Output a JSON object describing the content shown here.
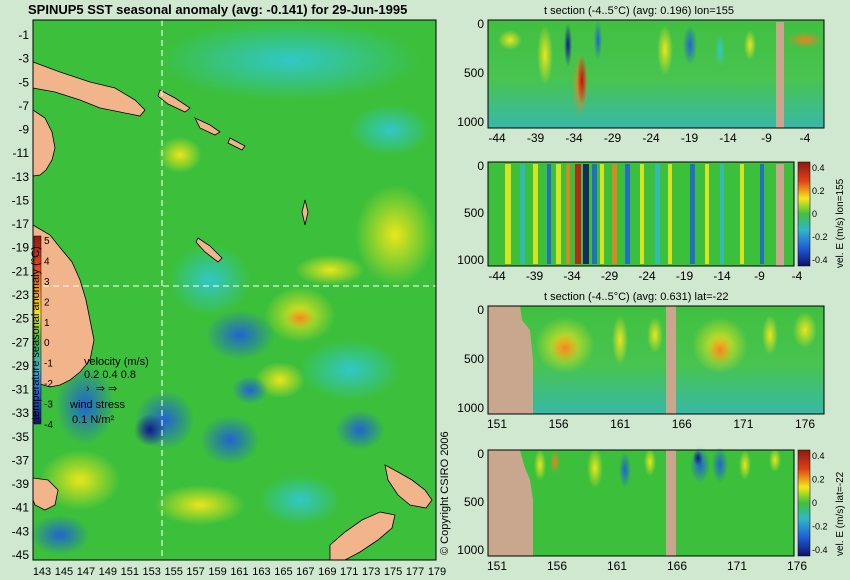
{
  "main_map": {
    "title": "SPINUP5 SST seasonal anomaly (avg: -0.141) for 29-Jun-1995",
    "lat_ticks": [
      "-1",
      "-3",
      "-5",
      "-7",
      "-9",
      "-11",
      "-13",
      "-15",
      "-17",
      "-19",
      "-21",
      "-23",
      "-25",
      "-27",
      "-29",
      "-31",
      "-33",
      "-35",
      "-37",
      "-39",
      "-41",
      "-43",
      "-45"
    ],
    "lon_ticks": [
      "143",
      "145",
      "147",
      "149",
      "151",
      "153",
      "155",
      "157",
      "159",
      "161",
      "163",
      "165",
      "167",
      "169",
      "171",
      "173",
      "175",
      "177",
      "179"
    ],
    "colorbar_label": "temperature seasonal anomaly (°C)",
    "colorbar_ticks": [
      "5",
      "4",
      "3",
      "2",
      "1",
      "0",
      "-1",
      "-2",
      "-3",
      "-4"
    ],
    "velocity_label": "velocity (m/s)",
    "velocity_scale": "0.2 0.4 0.8",
    "wind_label": "wind stress",
    "wind_scale": "0.1 N/m²",
    "section_lon": 155,
    "section_lat": -22
  },
  "panels": [
    {
      "title": "t section (-4..5°C) (avg: 0.196) lon=155",
      "x_ticks": [
        "-44",
        "-39",
        "-34",
        "-29",
        "-24",
        "-19",
        "-14",
        "-9",
        "-4"
      ],
      "y_ticks": [
        "0",
        "500",
        "1000"
      ]
    },
    {
      "title": "",
      "x_ticks": [
        "-44",
        "-39",
        "-34",
        "-29",
        "-24",
        "-19",
        "-14",
        "-9",
        "-4"
      ],
      "y_ticks": [
        "0",
        "500",
        "1000"
      ],
      "colorbar_label": "vel. E (m/s) lon=155",
      "colorbar_ticks": [
        "0.4",
        "0.2",
        "0",
        "-0.2",
        "-0.4"
      ]
    },
    {
      "title": "t section (-4..5°C) (avg: 0.631) lat=-22",
      "x_ticks": [
        "151",
        "156",
        "161",
        "166",
        "171",
        "176"
      ],
      "y_ticks": [
        "0",
        "500",
        "1000"
      ]
    },
    {
      "title": "",
      "x_ticks": [
        "151",
        "156",
        "161",
        "166",
        "171",
        "176"
      ],
      "y_ticks": [
        "0",
        "500",
        "1000"
      ],
      "colorbar_label": "vel. E (m/s) lat=-22",
      "colorbar_ticks": [
        "0.4",
        "0.2",
        "0",
        "-0.2",
        "-0.4"
      ]
    }
  ],
  "copyright": "© Copyright CSIRO 2006",
  "colors": {
    "land": "#f2b48a",
    "section_land": "#c8a78e",
    "ocean_base": "#3cc03c",
    "warm": "#f0e020",
    "cold": "#2f7fe0"
  },
  "chart_data": [
    {
      "type": "heatmap",
      "title": "SPINUP5 SST seasonal anomaly (avg: -0.141) for 29-Jun-1995",
      "xlabel": "",
      "ylabel": "",
      "xlim": [
        143,
        180
      ],
      "ylim": [
        -45,
        0
      ],
      "colorbar_range": [
        -4,
        5
      ],
      "colorbar_label": "temperature seasonal anomaly (°C)"
    },
    {
      "type": "heatmap",
      "title": "t section (-4..5°C) (avg: 0.196) lon=155",
      "xlim": [
        -46,
        -1
      ],
      "ylim": [
        1050,
        0
      ]
    },
    {
      "type": "heatmap",
      "title": "",
      "xlim": [
        -46,
        -1
      ],
      "ylim": [
        1050,
        0
      ],
      "colorbar_label": "vel. E (m/s) lon=155",
      "colorbar_range": [
        -0.4,
        0.4
      ]
    },
    {
      "type": "heatmap",
      "title": "t section (-4..5°C) (avg: 0.631) lat=-22",
      "xlim": [
        150,
        180
      ],
      "ylim": [
        1050,
        0
      ]
    },
    {
      "type": "heatmap",
      "title": "",
      "xlim": [
        150,
        180
      ],
      "ylim": [
        1050,
        0
      ],
      "colorbar_label": "vel. E (m/s) lat=-22",
      "colorbar_range": [
        -0.4,
        0.4
      ]
    }
  ]
}
